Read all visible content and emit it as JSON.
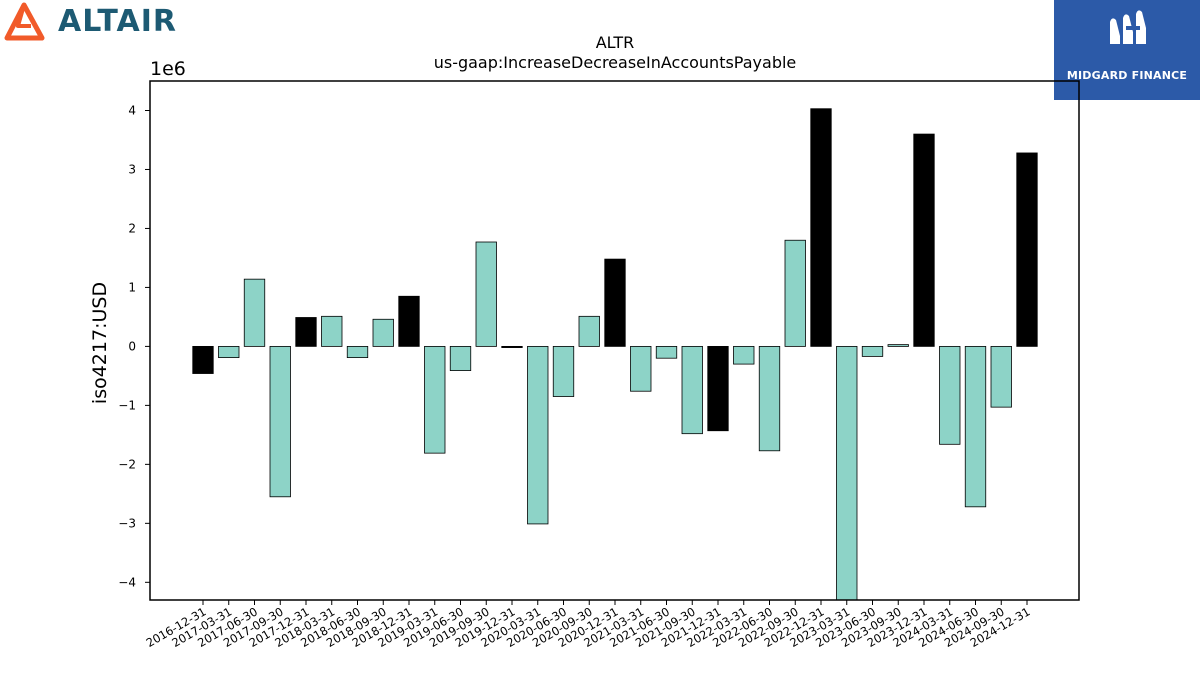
{
  "logos": {
    "left_brand": "ALTAIR",
    "right_brand": "MIDGARD FINANCE"
  },
  "chart_data": {
    "type": "bar",
    "title": "ALTR",
    "subtitle": "us-gaap:IncreaseDecreaseInAccountsPayable",
    "ylabel": "iso4217:USD",
    "y_offset_label": "1e6",
    "ylim": [
      -4.3,
      4.5
    ],
    "yticks": [
      -4,
      -3,
      -2,
      -1,
      0,
      1,
      2,
      3,
      4
    ],
    "grid": false,
    "colors": {
      "quarterly": "#8dd3c7",
      "annual": "#000000",
      "edge": "#000000"
    },
    "categories": [
      "2016-12-31",
      "2017-03-31",
      "2017-06-30",
      "2017-09-30",
      "2017-12-31",
      "2018-03-31",
      "2018-06-30",
      "2018-09-30",
      "2018-12-31",
      "2019-03-31",
      "2019-06-30",
      "2019-09-30",
      "2019-12-31",
      "2020-03-31",
      "2020-06-30",
      "2020-09-30",
      "2020-12-31",
      "2021-03-31",
      "2021-06-30",
      "2021-09-30",
      "2021-12-31",
      "2022-03-31",
      "2022-06-30",
      "2022-09-30",
      "2022-12-31",
      "2023-03-31",
      "2023-06-30",
      "2023-09-30",
      "2023-12-31",
      "2024-03-31",
      "2024-06-30",
      "2024-09-30",
      "2024-12-31"
    ],
    "values": [
      -0.46,
      -0.19,
      1.14,
      -2.55,
      0.49,
      0.51,
      -0.19,
      0.46,
      0.85,
      -1.81,
      -0.41,
      1.77,
      -0.02,
      -3.01,
      -0.85,
      0.51,
      1.48,
      -0.76,
      -0.2,
      -1.48,
      -1.43,
      -0.3,
      -1.77,
      1.8,
      4.03,
      -4.3,
      -0.17,
      0.03,
      3.6,
      -1.66,
      -2.72,
      -1.03,
      3.28
    ],
    "bar_kind": [
      "annual",
      "quarterly",
      "quarterly",
      "quarterly",
      "annual",
      "quarterly",
      "quarterly",
      "quarterly",
      "annual",
      "quarterly",
      "quarterly",
      "quarterly",
      "annual",
      "quarterly",
      "quarterly",
      "quarterly",
      "annual",
      "quarterly",
      "quarterly",
      "quarterly",
      "annual",
      "quarterly",
      "quarterly",
      "quarterly",
      "annual",
      "quarterly",
      "quarterly",
      "quarterly",
      "annual",
      "quarterly",
      "quarterly",
      "quarterly",
      "annual"
    ]
  }
}
